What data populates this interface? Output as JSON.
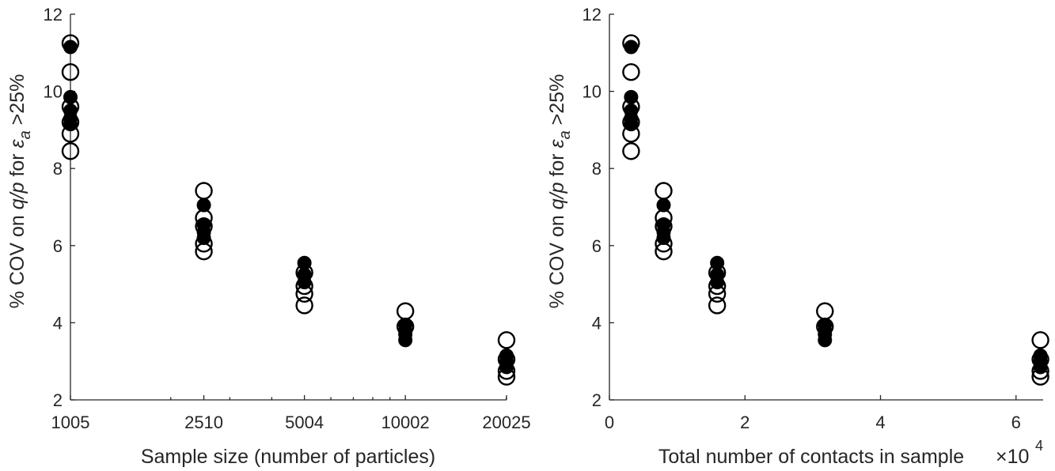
{
  "chart_data": [
    {
      "type": "scatter",
      "ylabel": {
        "prefix": "% COV on ",
        "var": "q/p",
        "mid": " for ",
        "eps": "ε",
        "sub": "a",
        "suffix": " >25%"
      },
      "xlabel": "Sample size (number of particles)",
      "xscale": "log",
      "xlim": [
        1005,
        20025
      ],
      "ylim": [
        2,
        12
      ],
      "x_ticks": [
        1005,
        2510,
        5004,
        10002,
        20025
      ],
      "x_tick_labels": [
        "1005",
        "2510",
        "5004",
        "10002",
        "20025"
      ],
      "y_ticks": [
        2,
        4,
        6,
        8,
        10,
        12
      ],
      "y_tick_labels": [
        "2",
        "4",
        "6",
        "8",
        "10",
        "12"
      ],
      "series": [
        {
          "marker": "open-circle",
          "points": [
            [
              1005,
              11.25
            ],
            [
              1005,
              10.5
            ],
            [
              1005,
              9.6
            ],
            [
              1005,
              9.2
            ],
            [
              1005,
              8.9
            ],
            [
              1005,
              8.45
            ],
            [
              2510,
              7.42
            ],
            [
              2510,
              6.72
            ],
            [
              2510,
              6.5
            ],
            [
              2510,
              6.05
            ],
            [
              2510,
              5.85
            ],
            [
              5004,
              5.3
            ],
            [
              5004,
              4.95
            ],
            [
              5004,
              4.75
            ],
            [
              5004,
              4.45
            ],
            [
              10002,
              4.3
            ],
            [
              10002,
              3.9
            ],
            [
              20025,
              3.55
            ],
            [
              20025,
              3.05
            ],
            [
              20025,
              2.75
            ],
            [
              20025,
              2.6
            ]
          ]
        },
        {
          "marker": "filled-circle",
          "points": [
            [
              1005,
              11.15
            ],
            [
              1005,
              9.85
            ],
            [
              1005,
              9.5
            ],
            [
              1005,
              9.3
            ],
            [
              1005,
              9.15
            ],
            [
              2510,
              7.05
            ],
            [
              2510,
              6.55
            ],
            [
              2510,
              6.35
            ],
            [
              2510,
              6.2
            ],
            [
              5004,
              5.55
            ],
            [
              5004,
              5.25
            ],
            [
              5004,
              5.05
            ],
            [
              10002,
              3.95
            ],
            [
              10002,
              3.8
            ],
            [
              10002,
              3.7
            ],
            [
              10002,
              3.55
            ],
            [
              20025,
              3.15
            ],
            [
              20025,
              3.0
            ],
            [
              20025,
              2.85
            ]
          ]
        }
      ]
    },
    {
      "type": "scatter",
      "ylabel": {
        "prefix": "% COV on ",
        "var": "q/p",
        "mid": " for ",
        "eps": "ε",
        "sub": "a",
        "suffix": " >25%"
      },
      "xlabel": "Total number of contacts in sample",
      "x_multiplier": {
        "base": "×10",
        "exp": "4"
      },
      "xscale": "linear",
      "xlim": [
        0,
        6.4
      ],
      "ylim": [
        2,
        12
      ],
      "x_ticks": [
        0,
        2,
        4,
        6
      ],
      "x_tick_labels": [
        "0",
        "2",
        "4",
        "6"
      ],
      "y_ticks": [
        2,
        4,
        6,
        8,
        10,
        12
      ],
      "y_tick_labels": [
        "2",
        "4",
        "6",
        "8",
        "10",
        "12"
      ],
      "series": [
        {
          "marker": "open-circle",
          "points": [
            [
              0.32,
              11.25
            ],
            [
              0.32,
              10.5
            ],
            [
              0.32,
              9.6
            ],
            [
              0.32,
              9.2
            ],
            [
              0.32,
              8.9
            ],
            [
              0.32,
              8.45
            ],
            [
              0.8,
              7.42
            ],
            [
              0.8,
              6.72
            ],
            [
              0.8,
              6.5
            ],
            [
              0.8,
              6.05
            ],
            [
              0.8,
              5.85
            ],
            [
              1.59,
              5.3
            ],
            [
              1.59,
              4.95
            ],
            [
              1.59,
              4.75
            ],
            [
              1.59,
              4.45
            ],
            [
              3.18,
              4.3
            ],
            [
              3.18,
              3.9
            ],
            [
              6.36,
              3.55
            ],
            [
              6.36,
              3.05
            ],
            [
              6.36,
              2.75
            ],
            [
              6.36,
              2.6
            ]
          ]
        },
        {
          "marker": "filled-circle",
          "points": [
            [
              0.32,
              11.15
            ],
            [
              0.32,
              9.85
            ],
            [
              0.32,
              9.5
            ],
            [
              0.32,
              9.3
            ],
            [
              0.32,
              9.15
            ],
            [
              0.8,
              7.05
            ],
            [
              0.8,
              6.55
            ],
            [
              0.8,
              6.35
            ],
            [
              0.8,
              6.2
            ],
            [
              1.59,
              5.55
            ],
            [
              1.59,
              5.25
            ],
            [
              1.59,
              5.05
            ],
            [
              3.18,
              3.95
            ],
            [
              3.18,
              3.8
            ],
            [
              3.18,
              3.7
            ],
            [
              3.18,
              3.55
            ],
            [
              6.36,
              3.15
            ],
            [
              6.36,
              3.0
            ],
            [
              6.36,
              2.85
            ]
          ]
        }
      ]
    }
  ]
}
